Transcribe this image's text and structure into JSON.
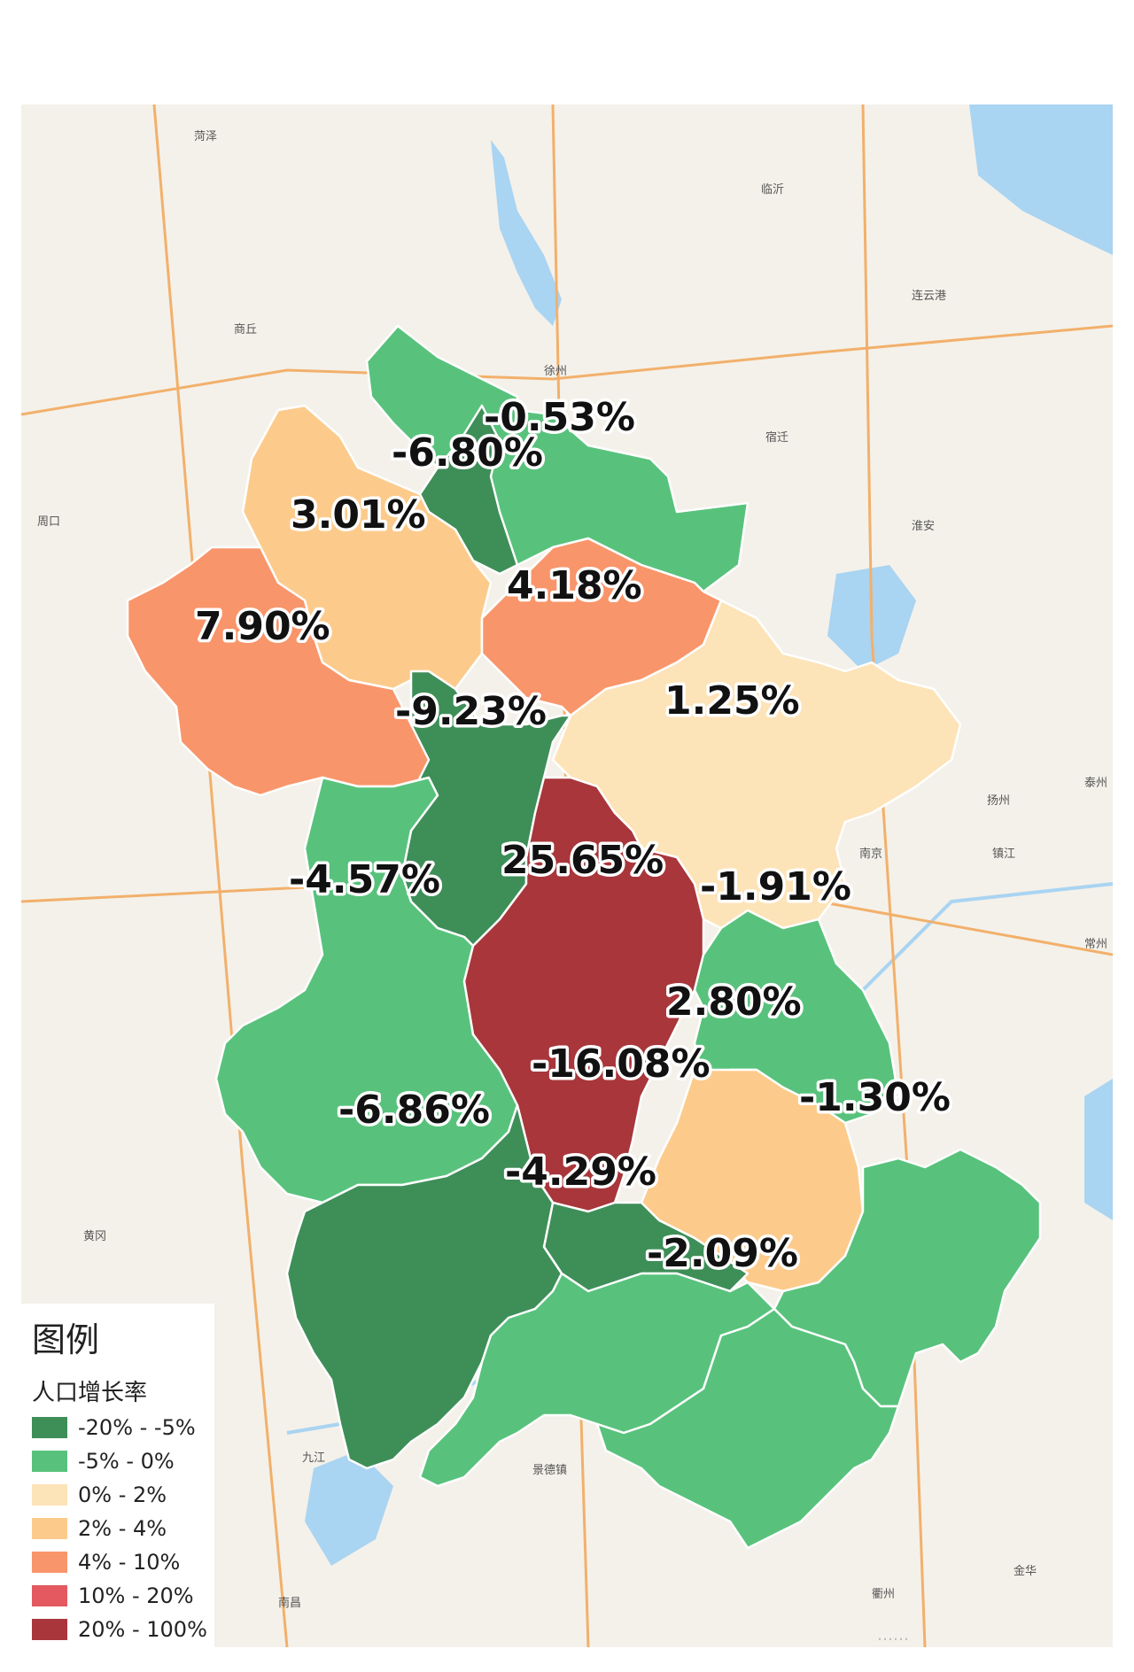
{
  "legend": {
    "title": "图例",
    "subtitle": "人口增长率",
    "items": [
      {
        "label": "-20% - -5%",
        "color": "#3e8e58"
      },
      {
        "label": "-5% - 0%",
        "color": "#58c27c"
      },
      {
        "label": "0% - 2%",
        "color": "#fde3b8"
      },
      {
        "label": "2% - 4%",
        "color": "#fccb8c"
      },
      {
        "label": "4% - 10%",
        "color": "#f9956a"
      },
      {
        "label": "10% - 20%",
        "color": "#e3595f"
      },
      {
        "label": "20% - 100%",
        "color": "#a8363b"
      }
    ]
  },
  "cities": {
    "huaibei": {
      "rate": "-6.80%"
    },
    "suzhou": {
      "rate": "-0.53%"
    },
    "bozhou": {
      "rate": "3.01%"
    },
    "bengbu": {
      "rate": "4.18%"
    },
    "fuyang": {
      "rate": "7.90%"
    },
    "huainan": {
      "rate": "-9.23%"
    },
    "chuzhou": {
      "rate": "1.25%"
    },
    "luan": {
      "rate": "-4.57%"
    },
    "hefei": {
      "rate": "25.65%"
    },
    "maanshan": {
      "rate": "-1.91%"
    },
    "wuhu": {
      "rate": "2.80%"
    },
    "tongling": {
      "rate": "-16.08%"
    },
    "xuancheng": {
      "rate": "-1.30%"
    },
    "anqing": {
      "rate": "-6.86%"
    },
    "chizhou": {
      "rate": "-4.29%"
    },
    "huangshan": {
      "rate": "-2.09%"
    }
  },
  "places": [
    "菏泽",
    "临沂",
    "徐州",
    "宿迁",
    "连云港",
    "淮安",
    "商丘",
    "周口",
    "南京",
    "扬州",
    "镇江",
    "常州",
    "泰州",
    "九江",
    "景德镇",
    "南昌",
    "黄冈",
    "衢州",
    "金华"
  ],
  "footer": "……"
}
